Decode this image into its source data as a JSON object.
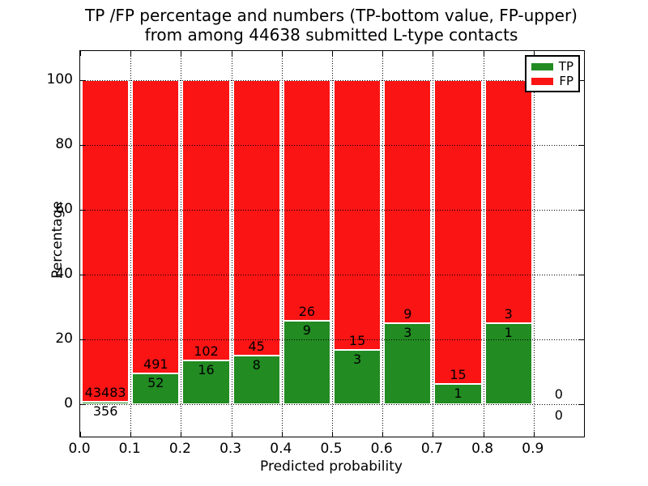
{
  "chart_data": {
    "type": "bar",
    "stacked": true,
    "normalized_percent": true,
    "title_lines": [
      "TP /FP percentage and numbers (TP-bottom value, FP-upper)",
      "from among 44638 submitted L-type contacts"
    ],
    "xlabel": "Predicted probability",
    "ylabel": "Percentage",
    "total_contacts": 44638,
    "x_tick_labels": [
      "0.0",
      "0.1",
      "0.2",
      "0.3",
      "0.4",
      "0.5",
      "0.6",
      "0.7",
      "0.8",
      "0.9"
    ],
    "y_tick_values": [
      0,
      20,
      40,
      60,
      80,
      100
    ],
    "xlim": [
      0.0,
      1.0
    ],
    "ylim": [
      -10,
      109
    ],
    "grid": "dotted",
    "legend": {
      "position": "upper right",
      "entries": [
        {
          "label": "TP",
          "color": "#228B22"
        },
        {
          "label": "FP",
          "color": "#FA1414"
        }
      ]
    },
    "bins": [
      {
        "x_start": 0.0,
        "x_end": 0.1,
        "tp": 356,
        "fp": 43483
      },
      {
        "x_start": 0.1,
        "x_end": 0.2,
        "tp": 52,
        "fp": 491
      },
      {
        "x_start": 0.2,
        "x_end": 0.3,
        "tp": 16,
        "fp": 102
      },
      {
        "x_start": 0.3,
        "x_end": 0.4,
        "tp": 8,
        "fp": 45
      },
      {
        "x_start": 0.4,
        "x_end": 0.5,
        "tp": 9,
        "fp": 26
      },
      {
        "x_start": 0.5,
        "x_end": 0.6,
        "tp": 3,
        "fp": 15
      },
      {
        "x_start": 0.6,
        "x_end": 0.7,
        "tp": 3,
        "fp": 9
      },
      {
        "x_start": 0.7,
        "x_end": 0.8,
        "tp": 1,
        "fp": 15
      },
      {
        "x_start": 0.8,
        "x_end": 0.9,
        "tp": 1,
        "fp": 3
      },
      {
        "x_start": 0.9,
        "x_end": 1.0,
        "tp": 0,
        "fp": 0
      }
    ]
  },
  "colors": {
    "tp": "#228B22",
    "fp": "#FA1414",
    "background": "#ffffff",
    "grid": "#000000",
    "text": "#000000"
  }
}
